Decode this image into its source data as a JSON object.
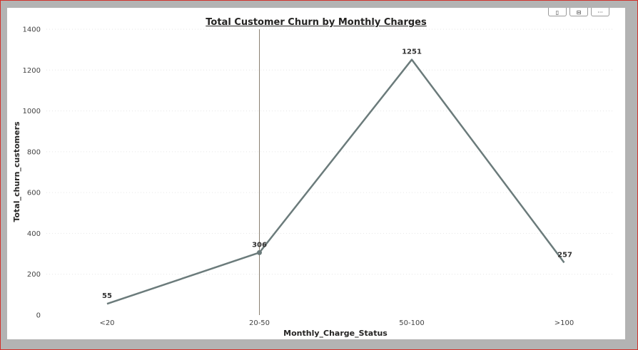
{
  "toolbar": {
    "items": [
      {
        "icon": "pin-icon",
        "glyph": "▯"
      },
      {
        "icon": "copy-visual-icon",
        "glyph": "⊟"
      },
      {
        "icon": "more-options-icon",
        "glyph": "···"
      }
    ]
  },
  "chart_data": {
    "type": "line",
    "title": "Total Customer Churn by Monthly Charges",
    "xlabel": "Monthly_Charge_Status",
    "ylabel": "Total_churn_customers",
    "categories": [
      "<20",
      "20-50",
      "50-100",
      ">100"
    ],
    "series": [
      {
        "values": [
          55,
          306,
          1251,
          257
        ]
      }
    ],
    "ylim": [
      0,
      1400
    ],
    "yticks": [
      0,
      200,
      400,
      600,
      800,
      1000,
      1200,
      1400
    ],
    "grid": true,
    "highlight_category": "20-50",
    "colors": {
      "line": "#6b7b7b",
      "cursor": "#8a8072",
      "grid": "#e6e6e6"
    }
  }
}
